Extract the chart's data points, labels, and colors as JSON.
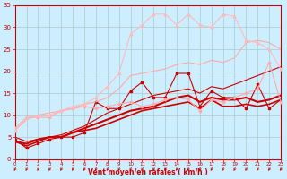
{
  "xlabel": "Vent moyen/en rafales ( km/h )",
  "xlim": [
    0,
    23
  ],
  "ylim": [
    0,
    35
  ],
  "yticks": [
    0,
    5,
    10,
    15,
    20,
    25,
    30,
    35
  ],
  "xticks": [
    0,
    1,
    2,
    3,
    4,
    5,
    6,
    7,
    8,
    9,
    10,
    11,
    12,
    13,
    14,
    15,
    16,
    17,
    18,
    19,
    20,
    21,
    22,
    23
  ],
  "bg_color": "#cceeff",
  "grid_color": "#aacccc",
  "xlabel_color": "#cc0000",
  "tick_color": "#cc0000",
  "arrow_color": "#cc0000",
  "series": [
    {
      "x": [
        0,
        1,
        2,
        3,
        4,
        5,
        6,
        7,
        8,
        9,
        10,
        11,
        12,
        13,
        14,
        15,
        16,
        17,
        18,
        19,
        20,
        21,
        22,
        23
      ],
      "y": [
        4.5,
        2.5,
        3.5,
        4.5,
        5.0,
        5.0,
        6.0,
        13.0,
        11.5,
        11.5,
        15.5,
        17.5,
        14.0,
        14.0,
        19.5,
        19.5,
        12.0,
        15.5,
        14.0,
        14.0,
        11.5,
        17.0,
        11.5,
        13.5
      ],
      "color": "#cc0000",
      "lw": 0.8,
      "marker": "s",
      "ms": 1.5
    },
    {
      "x": [
        0,
        1,
        2,
        3,
        4,
        5,
        6,
        7,
        8,
        9,
        10,
        11,
        12,
        13,
        14,
        15,
        16,
        17,
        18,
        19,
        20,
        21,
        22,
        23
      ],
      "y": [
        4.0,
        3.0,
        4.0,
        5.0,
        5.0,
        6.0,
        6.5,
        7.0,
        8.0,
        9.0,
        10.0,
        11.0,
        11.5,
        12.0,
        12.5,
        13.0,
        11.5,
        13.5,
        12.0,
        12.0,
        12.5,
        12.0,
        12.5,
        13.5
      ],
      "color": "#cc0000",
      "lw": 1.2,
      "marker": null,
      "ms": 0
    },
    {
      "x": [
        0,
        1,
        2,
        3,
        4,
        5,
        6,
        7,
        8,
        9,
        10,
        11,
        12,
        13,
        14,
        15,
        16,
        17,
        18,
        19,
        20,
        21,
        22,
        23
      ],
      "y": [
        4.0,
        3.5,
        4.5,
        5.0,
        5.0,
        6.0,
        7.0,
        8.0,
        9.0,
        10.0,
        11.0,
        11.5,
        12.0,
        13.0,
        14.0,
        14.5,
        13.0,
        14.0,
        13.5,
        13.5,
        14.0,
        13.0,
        13.5,
        14.5
      ],
      "color": "#cc0000",
      "lw": 1.5,
      "marker": null,
      "ms": 0
    },
    {
      "x": [
        0,
        1,
        2,
        3,
        4,
        5,
        6,
        7,
        8,
        9,
        10,
        11,
        12,
        13,
        14,
        15,
        16,
        17,
        18,
        19,
        20,
        21,
        22,
        23
      ],
      "y": [
        5.0,
        4.0,
        4.5,
        5.0,
        5.5,
        6.5,
        7.5,
        9.0,
        10.5,
        11.5,
        12.5,
        13.5,
        14.5,
        15.0,
        15.5,
        16.0,
        15.0,
        16.5,
        16.0,
        17.0,
        18.0,
        19.0,
        20.0,
        21.0
      ],
      "color": "#cc0000",
      "lw": 0.8,
      "marker": null,
      "ms": 0
    },
    {
      "x": [
        0,
        1,
        2,
        3,
        4,
        5,
        6,
        7,
        8,
        9,
        10,
        11,
        12,
        13,
        14,
        15,
        16,
        17,
        18,
        19,
        20,
        21,
        22,
        23
      ],
      "y": [
        7.0,
        9.5,
        9.5,
        9.5,
        11.0,
        11.5,
        12.0,
        11.5,
        12.0,
        12.5,
        13.0,
        12.0,
        12.5,
        13.5,
        14.0,
        13.5,
        11.0,
        13.5,
        13.0,
        14.0,
        15.0,
        16.0,
        22.0,
        13.0
      ],
      "color": "#ffaaaa",
      "lw": 0.8,
      "marker": "D",
      "ms": 1.5
    },
    {
      "x": [
        0,
        1,
        2,
        3,
        4,
        5,
        6,
        7,
        8,
        9,
        10,
        11,
        12,
        13,
        14,
        15,
        16,
        17,
        18,
        19,
        20,
        21,
        22,
        23
      ],
      "y": [
        6.5,
        9.0,
        10.0,
        10.5,
        11.0,
        11.5,
        12.5,
        13.0,
        14.0,
        16.0,
        19.0,
        19.5,
        20.0,
        20.5,
        21.5,
        22.0,
        21.5,
        22.5,
        22.0,
        23.0,
        26.5,
        27.0,
        26.5,
        25.0
      ],
      "color": "#ffaaaa",
      "lw": 0.8,
      "marker": null,
      "ms": 0
    },
    {
      "x": [
        0,
        1,
        2,
        3,
        4,
        5,
        6,
        7,
        8,
        9,
        10,
        11,
        12,
        13,
        14,
        15,
        16,
        17,
        18,
        19,
        20,
        21,
        22,
        23
      ],
      "y": [
        6.5,
        9.5,
        10.0,
        10.0,
        11.0,
        12.0,
        12.5,
        14.0,
        16.5,
        19.5,
        28.5,
        30.5,
        33.0,
        33.0,
        30.5,
        33.0,
        30.5,
        30.0,
        33.0,
        32.5,
        27.0,
        26.5,
        25.0,
        20.5
      ],
      "color": "#ffbbbb",
      "lw": 0.8,
      "marker": "^",
      "ms": 2.0
    }
  ]
}
